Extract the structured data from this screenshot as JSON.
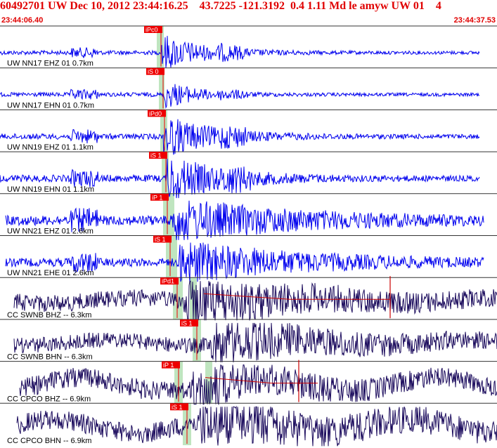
{
  "header": {
    "title": "60492701 UW Dec 10, 2012 23:44:16.25    43.7225 -121.3192  0.4 1.11 Md le amyw UW 01    4",
    "start_time": "23:44:06.40",
    "end_time": "23:44:37.53"
  },
  "colors": {
    "header_text": "#e00000",
    "uw_trace": "#0000ee",
    "cc_trace": "#1a0a5c",
    "pick_box": "#ee0000",
    "pick_text": "#ffffff",
    "pick_band": "#bfe5bf",
    "fit_line": "#cc0000",
    "divider": "#333333"
  },
  "chart_data": {
    "type": "line",
    "title": "60492701 UW Dec 10, 2012 23:44:16.25    43.7225 -121.3192  0.4 1.11 Md le amyw UW 01    4",
    "x_range": [
      "23:44:06.40",
      "23:44:37.53"
    ],
    "grid": false,
    "traces": [
      {
        "label": "UW NN17 EHZ 01 0.7km",
        "pick": "iPc0",
        "family": "UW"
      },
      {
        "label": "UW NN17 EHN 01 0.7km",
        "pick": "iS 0",
        "family": "UW"
      },
      {
        "label": "UW NN19 EHZ 01 1.1km",
        "pick": "iPd0",
        "family": "UW"
      },
      {
        "label": "UW NN19 EHN 01 1.1km",
        "pick": "iS 1",
        "family": "UW"
      },
      {
        "label": "UW NN21 EHZ 01 2.6km",
        "pick": "iP 1",
        "family": "UW"
      },
      {
        "label": "UW NN21 EHE 01 2.6km",
        "pick": "iS 1",
        "family": "UW"
      },
      {
        "label": "CC SWNB BHZ -- 6.3km",
        "pick": "iPd1",
        "family": "CC"
      },
      {
        "label": "CC SWNB BHN -- 6.3km",
        "pick": "iS 1",
        "family": "CC"
      },
      {
        "label": "CC CPCO BHZ -- 6.9km",
        "pick": "iP 1",
        "family": "CC"
      },
      {
        "label": "CC CPCO BHN -- 6.9km",
        "pick": "iS 1",
        "family": "CC"
      }
    ]
  }
}
